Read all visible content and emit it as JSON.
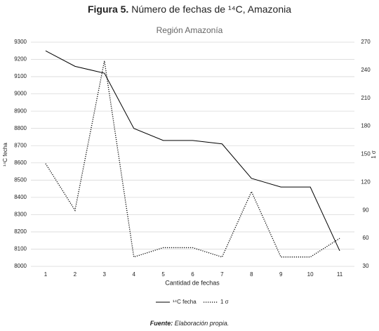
{
  "caption": {
    "label": "Figura 5.",
    "text": "Número de fechas de ¹⁴C, Amazonia"
  },
  "source": {
    "label": "Fuente:",
    "text": "Elaboración propia."
  },
  "chart_data": {
    "type": "line",
    "title": "Región Amazonía",
    "x_label": "Cantidad de fechas",
    "y_label": "¹⁴C fecha",
    "y2_label": "1 σ",
    "x": [
      1,
      2,
      3,
      4,
      5,
      6,
      7,
      8,
      9,
      10,
      11
    ],
    "xlim": [
      0.5,
      11.5
    ],
    "xticks": [
      1,
      2,
      3,
      4,
      5,
      6,
      7,
      8,
      9,
      10,
      11
    ],
    "ylim": [
      8000,
      9300
    ],
    "yticks": [
      8000,
      8100,
      8200,
      8300,
      8400,
      8500,
      8600,
      8700,
      8800,
      8900,
      9000,
      9100,
      9200,
      9300
    ],
    "y2lim": [
      30,
      270
    ],
    "y2ticks": [
      30,
      60,
      90,
      120,
      150,
      180,
      210,
      240,
      270
    ],
    "grid": true,
    "series": [
      {
        "name": "¹⁴C fecha",
        "color": "#000000",
        "dash": "solid",
        "values": [
          9250,
          9160,
          9120,
          8800,
          8730,
          8730,
          8710,
          8510,
          8460,
          8460,
          8090
        ]
      },
      {
        "name": "1 σ",
        "color": "#000000",
        "dash": "dotted",
        "axis": "y2",
        "values": [
          140,
          90,
          250,
          40,
          50,
          50,
          40,
          110,
          40,
          40,
          60
        ]
      }
    ]
  }
}
